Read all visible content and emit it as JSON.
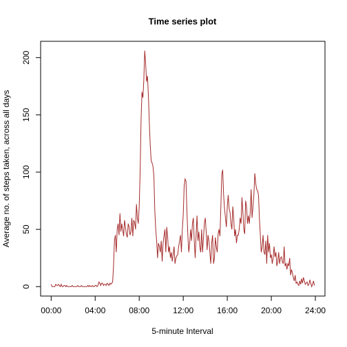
{
  "chart_data": {
    "type": "line",
    "title": "Time series plot",
    "x_label": "5-minute Interval",
    "y_label": "Average no. of steps taken, across all days",
    "color": "#a52a2a",
    "x": [
      0,
      5,
      10,
      15,
      20,
      25,
      30,
      35,
      40,
      45,
      50,
      55,
      60,
      65,
      70,
      75,
      80,
      85,
      90,
      95,
      100,
      105,
      110,
      115,
      120,
      125,
      130,
      135,
      140,
      145,
      150,
      155,
      160,
      165,
      170,
      175,
      180,
      185,
      190,
      195,
      200,
      205,
      210,
      215,
      220,
      225,
      230,
      235,
      240,
      245,
      250,
      255,
      260,
      265,
      270,
      275,
      280,
      285,
      290,
      295,
      300,
      305,
      310,
      315,
      320,
      325,
      330,
      335,
      340,
      345,
      350,
      355,
      360,
      365,
      370,
      375,
      380,
      385,
      390,
      395,
      400,
      405,
      410,
      415,
      420,
      425,
      430,
      435,
      440,
      445,
      450,
      455,
      460,
      465,
      470,
      475,
      480,
      485,
      490,
      495,
      500,
      505,
      510,
      515,
      520,
      525,
      530,
      535,
      540,
      545,
      550,
      555,
      560,
      565,
      570,
      575,
      580,
      585,
      590,
      595,
      600,
      605,
      610,
      615,
      620,
      625,
      630,
      635,
      640,
      645,
      650,
      655,
      660,
      665,
      670,
      675,
      680,
      685,
      690,
      695,
      700,
      705,
      710,
      715,
      720,
      725,
      730,
      735,
      740,
      745,
      750,
      755,
      760,
      765,
      770,
      775,
      780,
      785,
      790,
      795,
      800,
      805,
      810,
      815,
      820,
      825,
      830,
      835,
      840,
      845,
      850,
      855,
      860,
      865,
      870,
      875,
      880,
      885,
      890,
      895,
      900,
      905,
      910,
      915,
      920,
      925,
      930,
      935,
      940,
      945,
      950,
      955,
      960,
      965,
      970,
      975,
      980,
      985,
      990,
      995,
      1000,
      1005,
      1010,
      1015,
      1020,
      1025,
      1030,
      1035,
      1040,
      1045,
      1050,
      1055,
      1060,
      1065,
      1070,
      1075,
      1080,
      1085,
      1090,
      1095,
      1100,
      1105,
      1110,
      1115,
      1120,
      1125,
      1130,
      1135,
      1140,
      1145,
      1150,
      1155,
      1160,
      1165,
      1170,
      1175,
      1180,
      1185,
      1190,
      1195,
      1200,
      1205,
      1210,
      1215,
      1220,
      1225,
      1230,
      1235,
      1240,
      1245,
      1250,
      1255,
      1260,
      1265,
      1270,
      1275,
      1280,
      1285,
      1290,
      1295,
      1300,
      1305,
      1310,
      1315,
      1320,
      1325,
      1330,
      1335,
      1340,
      1345,
      1350,
      1355,
      1360,
      1365,
      1370,
      1375,
      1380,
      1385,
      1390,
      1395,
      1400,
      1405,
      1410,
      1415,
      1420,
      1425,
      1430,
      1435
    ],
    "values": [
      2,
      0,
      0,
      0,
      0,
      2,
      1,
      1,
      2,
      1,
      0,
      2,
      0,
      0,
      1,
      1,
      0,
      1,
      0,
      0,
      0,
      0,
      0,
      1,
      0,
      0,
      0,
      0,
      0,
      1,
      0,
      0,
      0,
      1,
      0,
      0,
      0,
      0,
      0,
      0,
      1,
      0,
      1,
      0,
      0,
      1,
      0,
      0,
      1,
      1,
      0,
      1,
      4,
      3,
      1,
      3,
      3,
      1,
      2,
      2,
      1,
      3,
      2,
      1,
      3,
      2,
      3,
      4,
      18,
      40,
      45,
      30,
      50,
      55,
      45,
      64,
      48,
      55,
      50,
      44,
      58,
      52,
      46,
      43,
      55,
      52,
      45,
      48,
      60,
      44,
      58,
      56,
      50,
      72,
      60,
      55,
      70,
      100,
      145,
      170,
      165,
      180,
      206,
      195,
      179,
      184,
      167,
      143,
      124,
      110,
      108,
      105,
      96,
      66,
      50,
      40,
      25,
      38,
      35,
      30,
      40,
      22,
      38,
      44,
      50,
      30,
      52,
      43,
      30,
      35,
      25,
      30,
      22,
      28,
      35,
      20,
      25,
      27,
      28,
      35,
      40,
      45,
      30,
      50,
      63,
      88,
      94,
      92,
      66,
      45,
      30,
      38,
      50,
      40,
      55,
      60,
      40,
      25,
      45,
      62,
      40,
      48,
      35,
      30,
      50,
      30,
      42,
      55,
      60,
      48,
      32,
      45,
      40,
      30,
      20,
      38,
      45,
      20,
      25,
      43,
      35,
      30,
      46,
      50,
      44,
      70,
      98,
      102,
      80,
      68,
      60,
      52,
      70,
      80,
      68,
      65,
      55,
      50,
      70,
      60,
      44,
      50,
      38,
      45,
      45,
      50,
      60,
      55,
      78,
      65,
      50,
      46,
      75,
      70,
      55,
      62,
      55,
      65,
      85,
      60,
      70,
      80,
      99,
      90,
      85,
      84,
      80,
      60,
      45,
      30,
      35,
      45,
      30,
      28,
      40,
      20,
      45,
      30,
      38,
      25,
      28,
      20,
      25,
      35,
      26,
      30,
      18,
      22,
      30,
      20,
      25,
      26,
      22,
      20,
      35,
      18,
      20,
      15,
      20,
      18,
      25,
      10,
      15,
      12,
      8,
      5,
      10,
      3,
      4,
      2,
      1,
      5,
      2,
      7,
      3,
      8,
      5,
      2,
      3,
      4,
      1,
      2,
      6,
      3,
      0,
      2,
      5,
      1
    ],
    "xlim": [
      -57.4,
      1492.4
    ],
    "xticks": [
      {
        "value": 0,
        "label": "00:00"
      },
      {
        "value": 240,
        "label": "04:00"
      },
      {
        "value": 480,
        "label": "08:00"
      },
      {
        "value": 720,
        "label": "12:00"
      },
      {
        "value": 960,
        "label": "16:00"
      },
      {
        "value": 1200,
        "label": "20:00"
      },
      {
        "value": 1440,
        "label": "24:00"
      }
    ],
    "ylim": [
      -8.24,
      214.24
    ],
    "yticks": [
      0,
      50,
      100,
      150,
      200
    ]
  }
}
